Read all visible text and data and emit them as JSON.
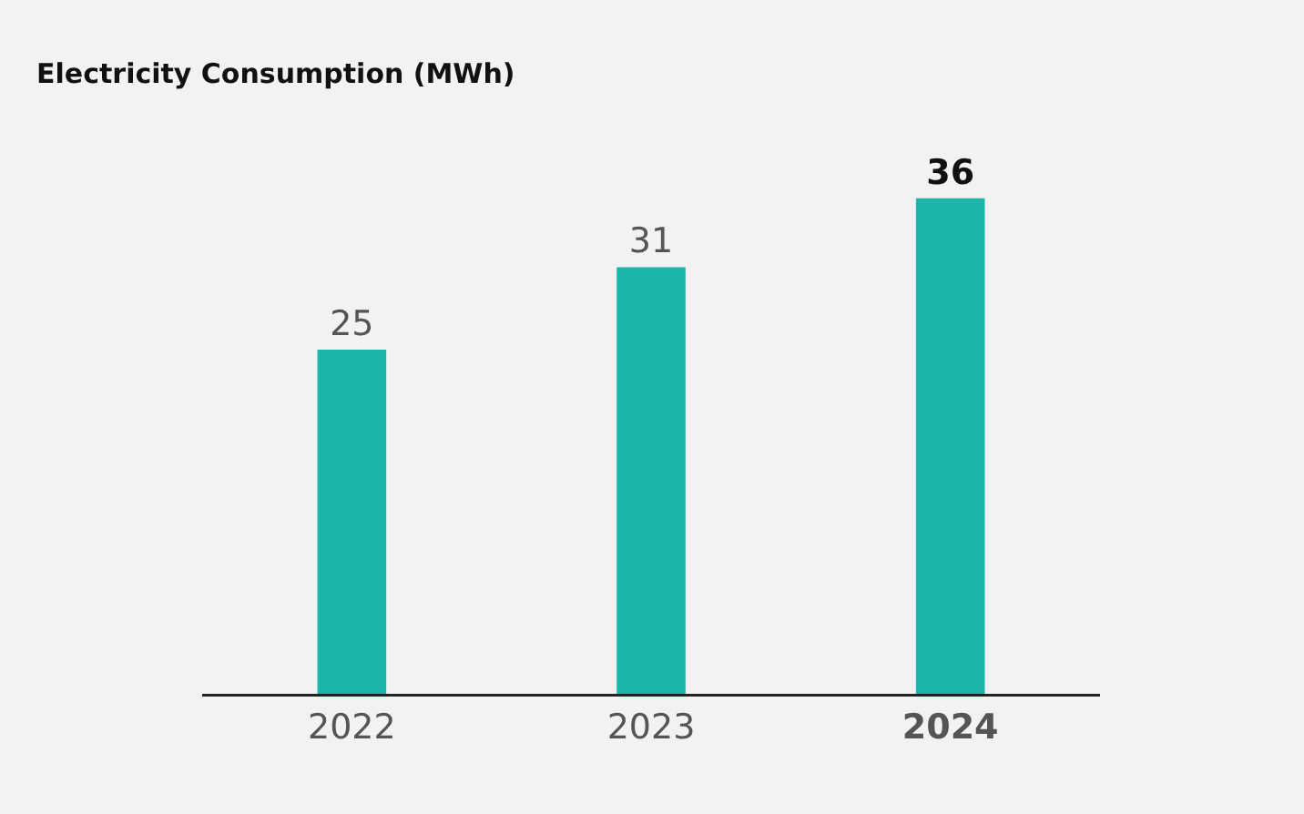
{
  "chart_data": {
    "type": "bar",
    "title": "Electricity Consumption (MWh)",
    "categories": [
      "2022",
      "2023",
      "2024"
    ],
    "values": [
      25,
      31,
      36
    ],
    "color": "#1cb5ab",
    "data_labels": true
  }
}
